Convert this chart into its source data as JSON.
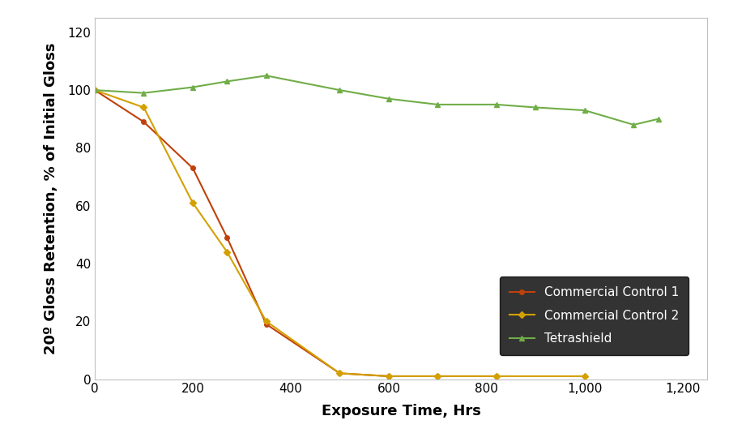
{
  "title": "",
  "xlabel": "Exposure Time, Hrs",
  "ylabel": "20º Gloss Retention, % of Initial Gloss",
  "xlim": [
    0,
    1250
  ],
  "ylim": [
    0,
    125
  ],
  "yticks": [
    0,
    20,
    40,
    60,
    80,
    100,
    120
  ],
  "xticks": [
    0,
    200,
    400,
    600,
    800,
    1000,
    1200
  ],
  "series": [
    {
      "label": "Commercial Control 1",
      "color": "#C0400A",
      "marker": "o",
      "markersize": 4,
      "linewidth": 1.5,
      "x": [
        0,
        100,
        200,
        270,
        350,
        500,
        600,
        700,
        820
      ],
      "y": [
        100,
        89,
        73,
        49,
        19,
        2,
        1,
        1,
        1
      ]
    },
    {
      "label": "Commercial Control 2",
      "color": "#D4A000",
      "marker": "D",
      "markersize": 4,
      "linewidth": 1.5,
      "x": [
        0,
        100,
        200,
        270,
        350,
        500,
        600,
        700,
        820,
        1000
      ],
      "y": [
        100,
        94,
        61,
        44,
        20,
        2,
        1,
        1,
        1,
        1
      ]
    },
    {
      "label": "Tetrashield",
      "color": "#70AD47",
      "marker": "^",
      "markersize": 4,
      "linewidth": 1.5,
      "x": [
        0,
        100,
        200,
        270,
        350,
        500,
        600,
        700,
        820,
        900,
        1000,
        1100,
        1150
      ],
      "y": [
        100,
        99,
        101,
        103,
        105,
        100,
        97,
        95,
        95,
        94,
        93,
        88,
        90
      ]
    }
  ],
  "legend_facecolor": "#000000",
  "legend_textcolor": "#ffffff",
  "legend_fontsize": 11,
  "background_color": "#ffffff",
  "plot_background": "#ffffff",
  "border_color": "#c0c0c0",
  "axis_label_fontsize": 13,
  "tick_fontsize": 11
}
